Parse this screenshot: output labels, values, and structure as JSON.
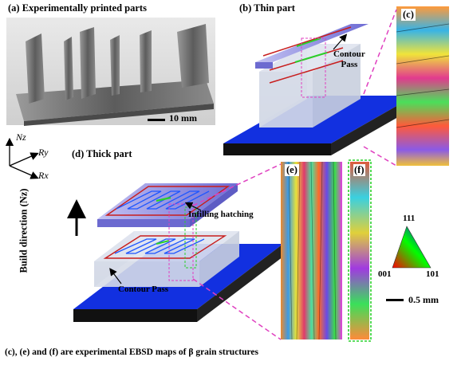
{
  "panels": {
    "a": {
      "label": "(a) Experimentally printed parts",
      "scale_bar": "10 mm"
    },
    "b": {
      "label": "(b) Thin part",
      "contour_label": "Contour\nPass"
    },
    "c": {
      "label": "(c)"
    },
    "d": {
      "label": "(d) Thick part",
      "infill_label": "Infilling hatching",
      "contour_label": "Contour Pass"
    },
    "e": {
      "label": "(e)"
    },
    "f": {
      "label": "(f)"
    }
  },
  "axes": {
    "z": "Nz",
    "y": "Ry",
    "x": "Rx"
  },
  "build_direction": "Build direction (Nz)",
  "ipf": {
    "top": "111",
    "left": "001",
    "right": "101"
  },
  "ebsd_scale_bar": "0.5 mm",
  "caption": "(c), (e) and (f) are experimental EBSD maps of β grain structures",
  "colors": {
    "substrate_top": "#1230e0",
    "substrate_side": "#111111",
    "part_body": "#d2d8e6",
    "layer_top": "#8f8ee0",
    "toolpath": "#c81e1e",
    "hatch": "#1e56ff",
    "callout": "#e040c0",
    "highlight": "#2ad02a"
  }
}
